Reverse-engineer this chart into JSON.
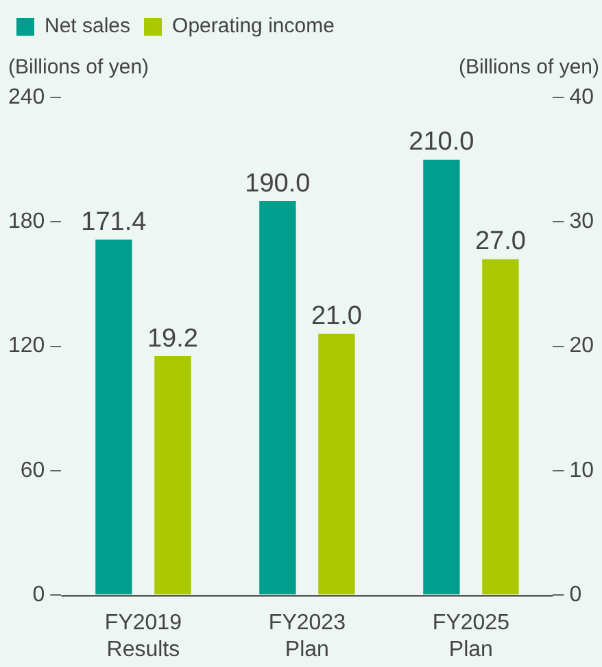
{
  "chart_data": {
    "type": "bar",
    "categories": [
      "FY2019 Results",
      "FY2023 Plan",
      "FY2025 Plan"
    ],
    "series": [
      {
        "name": "Net sales",
        "color": "#009e8c",
        "values": [
          171.4,
          190.0,
          210.0
        ],
        "value_labels": [
          "171.4",
          "190.0",
          "210.0"
        ]
      },
      {
        "name": "Operating income",
        "color": "#a9c800",
        "values": [
          19.2,
          21.0,
          27.0
        ],
        "value_labels": [
          "19.2",
          "21.0",
          "27.0"
        ],
        "axis": "y2"
      }
    ],
    "ylabel": "(Billions of yen)",
    "y2label": "(Billions of yen)",
    "ylim": [
      0,
      240
    ],
    "yticks": [
      0,
      60,
      120,
      180,
      240
    ],
    "y2lim": [
      0,
      40
    ],
    "y2ticks": [
      0,
      10,
      20,
      30,
      40
    ],
    "grid": false,
    "legend": "top left"
  }
}
